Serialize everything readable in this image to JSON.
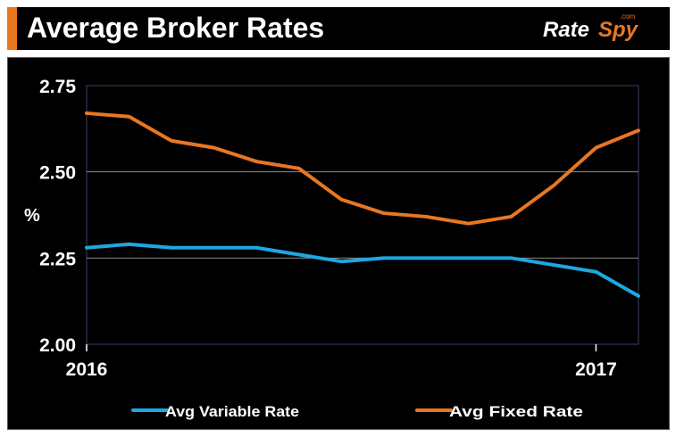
{
  "header": {
    "title": "Average Broker Rates",
    "logo_text_left": "Rate",
    "logo_text_right": "Spy",
    "logo_tld": ".com"
  },
  "colors": {
    "accent": "#e87722",
    "background": "#000000",
    "variable": "#1ea7e1",
    "fixed": "#e87722"
  },
  "chart_data": {
    "type": "line",
    "title": "Average Broker Rates",
    "xlabel": "",
    "ylabel": "%",
    "ylim": [
      2.0,
      2.75
    ],
    "yticks": [
      "2.75",
      "2.50",
      "2.25",
      "2.00"
    ],
    "ytick_values": [
      2.75,
      2.5,
      2.25,
      2.0
    ],
    "xtick_labels": [
      "2016",
      "2017"
    ],
    "xtick_values": [
      0,
      12
    ],
    "xlim": [
      0,
      13
    ],
    "x": [
      0,
      1,
      2,
      3,
      4,
      5,
      6,
      7,
      8,
      9,
      10,
      11,
      12,
      13
    ],
    "grid": "horizontal",
    "legend_position": "bottom",
    "series": [
      {
        "name": "Avg Variable Rate",
        "color": "#1ea7e1",
        "values": [
          2.28,
          2.29,
          2.28,
          2.28,
          2.28,
          2.26,
          2.24,
          2.25,
          2.25,
          2.25,
          2.25,
          2.23,
          2.21,
          2.14
        ]
      },
      {
        "name": "Avg Fixed Rate",
        "color": "#e87722",
        "values": [
          2.67,
          2.66,
          2.59,
          2.57,
          2.53,
          2.51,
          2.42,
          2.38,
          2.37,
          2.35,
          2.37,
          2.46,
          2.57,
          2.62
        ]
      }
    ]
  }
}
